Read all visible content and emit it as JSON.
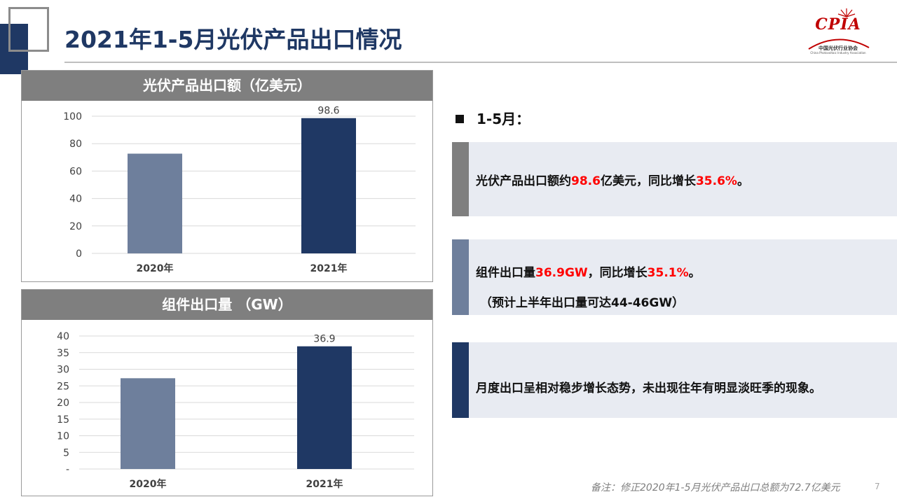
{
  "header": {
    "title": "2021年1-5月光伏产品出口情况"
  },
  "logo": {
    "text": "CPIA",
    "subtitle": "中国光伏行业协会",
    "subtitle_en": "China Photovoltaic Industry Association"
  },
  "colors": {
    "title": "#1f3864",
    "bar_2020": "#6e7f9c",
    "bar_2021": "#1f3864",
    "highlight": "#ff0000",
    "panel_header": "#7f7f7f",
    "callout_bg": "#e8ebf2"
  },
  "chart_data": [
    {
      "type": "bar",
      "title": "光伏产品出口额（亿美元）",
      "categories": [
        "2020年",
        "2021年"
      ],
      "values": [
        72.7,
        98.6
      ],
      "data_labels": [
        "",
        "98.6"
      ],
      "ylim": [
        0,
        100
      ],
      "yticks": [
        0,
        20,
        40,
        60,
        80,
        100
      ],
      "ytick_labels": [
        "0",
        "20",
        "40",
        "60",
        "80",
        "100"
      ],
      "grid": true
    },
    {
      "type": "bar",
      "title": "组件出口量 （GW）",
      "categories": [
        "2020年",
        "2021年"
      ],
      "values": [
        27.3,
        36.9
      ],
      "data_labels": [
        "",
        "36.9"
      ],
      "ylim": [
        0,
        40
      ],
      "yticks": [
        0,
        5,
        10,
        15,
        20,
        25,
        30,
        35,
        40
      ],
      "ytick_labels": [
        "-",
        "5",
        "10",
        "15",
        "20",
        "25",
        "30",
        "35",
        "40"
      ],
      "grid": true
    }
  ],
  "summary": {
    "heading": "1-5月：",
    "callout1": {
      "pre": "光伏产品出口额约",
      "v1": "98.6",
      "mid": "亿美元，同比增长",
      "v2": "35.6%",
      "post": "。"
    },
    "callout2": {
      "pre": "组件出口量",
      "v1": "36.9GW",
      "mid": "，同比增长",
      "v2": "35.1%",
      "post": "。",
      "note": "（预计上半年出口量可达44-46GW）"
    },
    "callout3": {
      "text": "月度出口呈相对稳步增长态势，未出现往年有明显淡旺季的现象。"
    }
  },
  "footer": {
    "note": "备注：修正2020年1-5月光伏产品出口总额为72.7亿美元",
    "page": "7"
  }
}
